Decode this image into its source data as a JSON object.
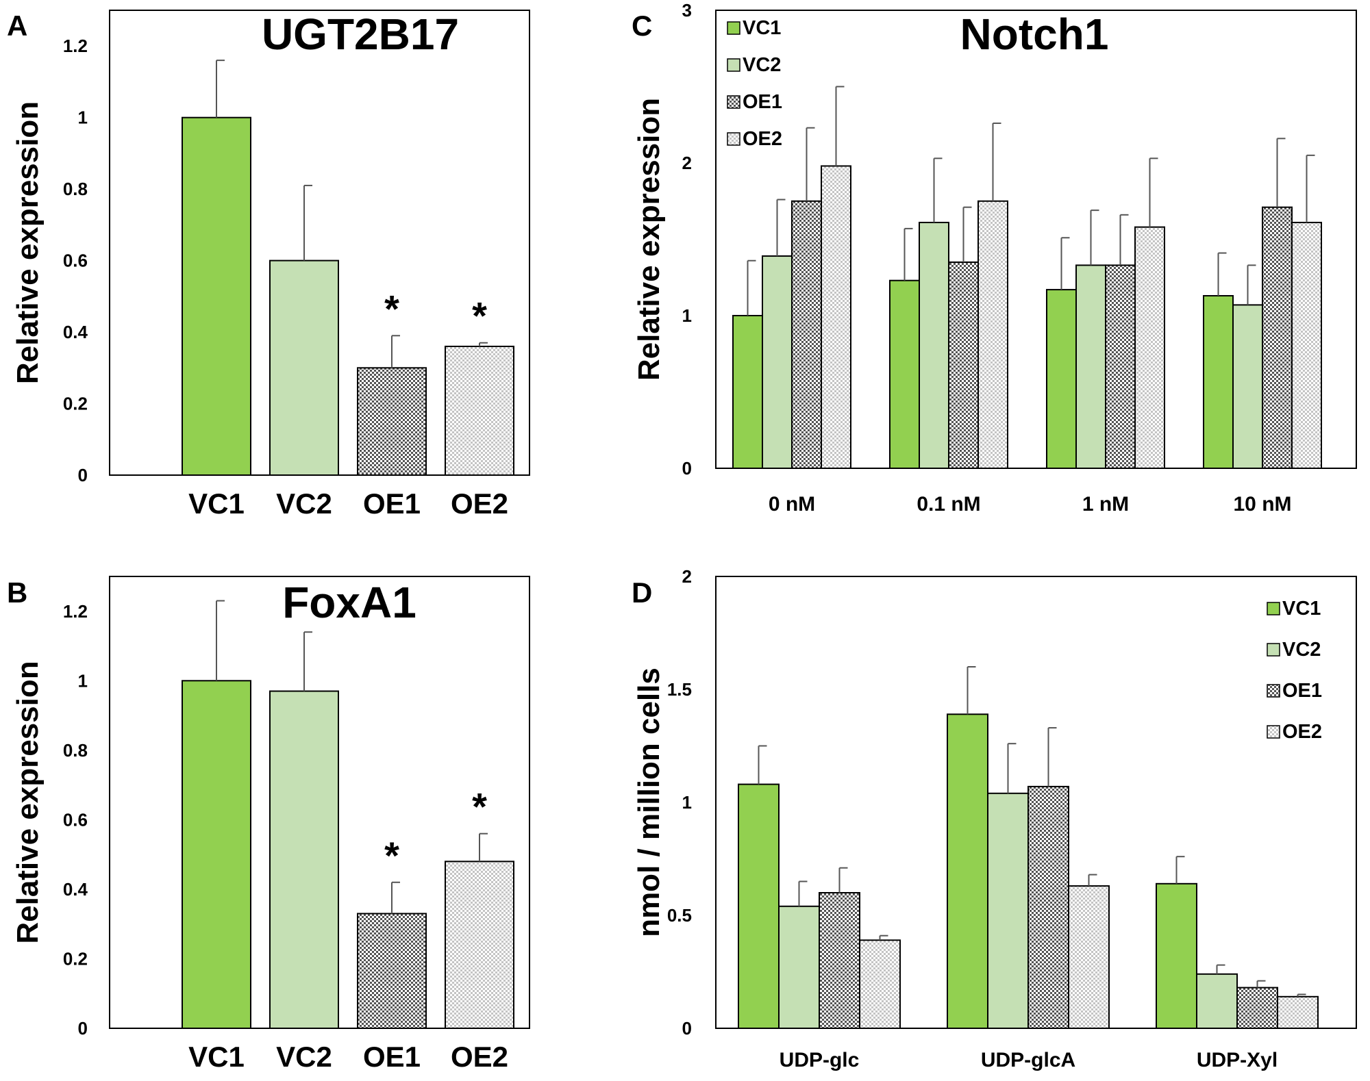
{
  "panels": [
    {
      "id": "A",
      "letter": "A"
    },
    {
      "id": "B",
      "letter": "B"
    },
    {
      "id": "C",
      "letter": "C"
    },
    {
      "id": "D",
      "letter": "D"
    }
  ],
  "series_styles": {
    "VC1": {
      "color": "#92d050",
      "pattern": "solid"
    },
    "VC2": {
      "color": "#c5e0b4",
      "pattern": "solid"
    },
    "OE1": {
      "color": "#7f7f7f",
      "pattern": "dense-checker"
    },
    "OE2": {
      "color": "#bfbfbf",
      "pattern": "light-checker"
    }
  },
  "chart_data": [
    {
      "panel": "A",
      "type": "bar",
      "title": "UGT2B17",
      "ylabel": "Relative expression",
      "xlabel": "",
      "ylim": [
        0,
        1.3
      ],
      "yticks": [
        0,
        0.2,
        0.4,
        0.6,
        0.8,
        1,
        1.2
      ],
      "ytick_labels": [
        "0",
        "0.2",
        "0.4",
        "0.6",
        "0.8",
        "1",
        "1.2"
      ],
      "categories": [
        "VC1",
        "VC2",
        "OE1",
        "OE2"
      ],
      "values": [
        1.0,
        0.6,
        0.3,
        0.36
      ],
      "errors": [
        0.16,
        0.21,
        0.09,
        0.01
      ],
      "significance": [
        "",
        "",
        "*",
        "*"
      ],
      "grid": false,
      "legend": "none"
    },
    {
      "panel": "B",
      "type": "bar",
      "title": "FoxA1",
      "ylabel": "Relative expression",
      "xlabel": "",
      "ylim": [
        0,
        1.3
      ],
      "yticks": [
        0,
        0.2,
        0.4,
        0.6,
        0.8,
        1,
        1.2
      ],
      "ytick_labels": [
        "0",
        "0.2",
        "0.4",
        "0.6",
        "0.8",
        "1",
        "1.2"
      ],
      "categories": [
        "VC1",
        "VC2",
        "OE1",
        "OE2"
      ],
      "values": [
        1.0,
        0.97,
        0.33,
        0.48
      ],
      "errors": [
        0.23,
        0.17,
        0.09,
        0.08
      ],
      "significance": [
        "",
        "",
        "*",
        "*"
      ],
      "grid": false,
      "legend": "none"
    },
    {
      "panel": "C",
      "type": "bar",
      "title": "Notch1",
      "ylabel": "Relative expression",
      "xlabel": "",
      "ylim": [
        0,
        3
      ],
      "yticks": [
        0,
        1,
        2,
        3
      ],
      "ytick_labels": [
        "0",
        "1",
        "2",
        "3"
      ],
      "categories": [
        "0 nM",
        "0.1 nM",
        "1 nM",
        "10 nM"
      ],
      "series": [
        {
          "name": "VC1",
          "values": [
            1.0,
            1.23,
            1.17,
            1.13
          ],
          "errors": [
            0.36,
            0.34,
            0.34,
            0.28
          ]
        },
        {
          "name": "VC2",
          "values": [
            1.39,
            1.61,
            1.33,
            1.07
          ],
          "errors": [
            0.37,
            0.42,
            0.36,
            0.26
          ]
        },
        {
          "name": "OE1",
          "values": [
            1.75,
            1.35,
            1.33,
            1.71
          ],
          "errors": [
            0.48,
            0.36,
            0.33,
            0.45
          ]
        },
        {
          "name": "OE2",
          "values": [
            1.98,
            1.75,
            1.58,
            1.61
          ],
          "errors": [
            0.52,
            0.51,
            0.45,
            0.44
          ]
        }
      ],
      "grid": false,
      "legend": "top-left"
    },
    {
      "panel": "D",
      "type": "bar",
      "title": "",
      "ylabel": "nmol / million cells",
      "xlabel": "",
      "ylim": [
        0,
        2
      ],
      "yticks": [
        0,
        0.5,
        1,
        1.5,
        2
      ],
      "ytick_labels": [
        "0",
        "0.5",
        "1",
        "1.5",
        "2"
      ],
      "categories": [
        "UDP-glc",
        "UDP-glcA",
        "UDP-Xyl"
      ],
      "series": [
        {
          "name": "VC1",
          "values": [
            1.08,
            1.39,
            0.64
          ],
          "errors": [
            0.17,
            0.21,
            0.12
          ]
        },
        {
          "name": "VC2",
          "values": [
            0.54,
            1.04,
            0.24
          ],
          "errors": [
            0.11,
            0.22,
            0.04
          ]
        },
        {
          "name": "OE1",
          "values": [
            0.6,
            1.07,
            0.18
          ],
          "errors": [
            0.11,
            0.26,
            0.03
          ]
        },
        {
          "name": "OE2",
          "values": [
            0.39,
            0.63,
            0.14
          ],
          "errors": [
            0.02,
            0.05,
            0.01
          ]
        }
      ],
      "grid": false,
      "legend": "right"
    }
  ]
}
